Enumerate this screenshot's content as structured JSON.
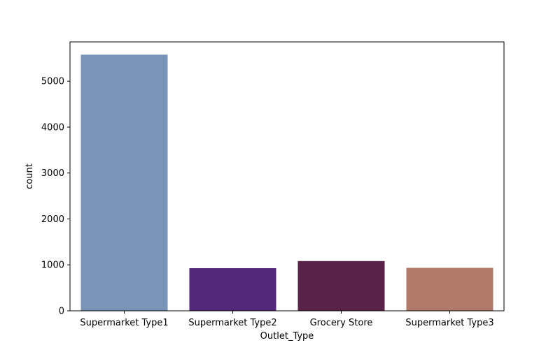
{
  "chart_data": {
    "type": "bar",
    "title": "",
    "xlabel": "Outlet_Type",
    "ylabel": "count",
    "categories": [
      "Supermarket Type1",
      "Supermarket Type2",
      "Grocery Store",
      "Supermarket Type3"
    ],
    "values": [
      5577,
      928,
      1083,
      935
    ],
    "colors": [
      "#7895b8",
      "#53277a",
      "#5a2247",
      "#b37a6a"
    ],
    "ylim": [
      0,
      5855
    ],
    "yticks": [
      0,
      1000,
      2000,
      3000,
      4000,
      5000
    ],
    "grid": false,
    "legend": "none"
  }
}
